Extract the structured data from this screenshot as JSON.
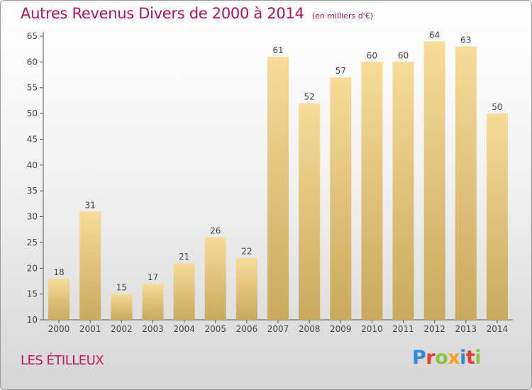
{
  "header": {
    "title": "Autres Revenus Divers de 2000 à 2014",
    "unit": "(en milliers d'€)"
  },
  "footer": {
    "commune": "LES ÉTILLEUX",
    "logo_text": "Proxiti",
    "logo_colors": [
      "#2e8bd8",
      "#e63c2b",
      "#8bc53f",
      "#f7a11a",
      "#2e8bd8",
      "#e63c2b",
      "#8bc53f"
    ]
  },
  "colors": {
    "title": "#b0125d",
    "bar_light": "#f6dc98",
    "bar_dark": "#c9aa5c",
    "axis": "#555555",
    "text": "#444444"
  },
  "chart_data": {
    "type": "bar",
    "title": "Autres Revenus Divers de 2000 à 2014",
    "subtitle": "(en milliers d'€)",
    "categories": [
      "2000",
      "2001",
      "2002",
      "2003",
      "2004",
      "2005",
      "2006",
      "2007",
      "2008",
      "2009",
      "2010",
      "2011",
      "2012",
      "2013",
      "2014"
    ],
    "values": [
      18,
      31,
      15,
      17,
      21,
      26,
      22,
      61,
      52,
      57,
      60,
      60,
      64,
      63,
      50
    ],
    "ylim": [
      10,
      65
    ],
    "yticks": [
      10,
      15,
      20,
      25,
      30,
      35,
      40,
      45,
      50,
      55,
      60,
      65
    ],
    "grid": false,
    "legend": "none"
  }
}
